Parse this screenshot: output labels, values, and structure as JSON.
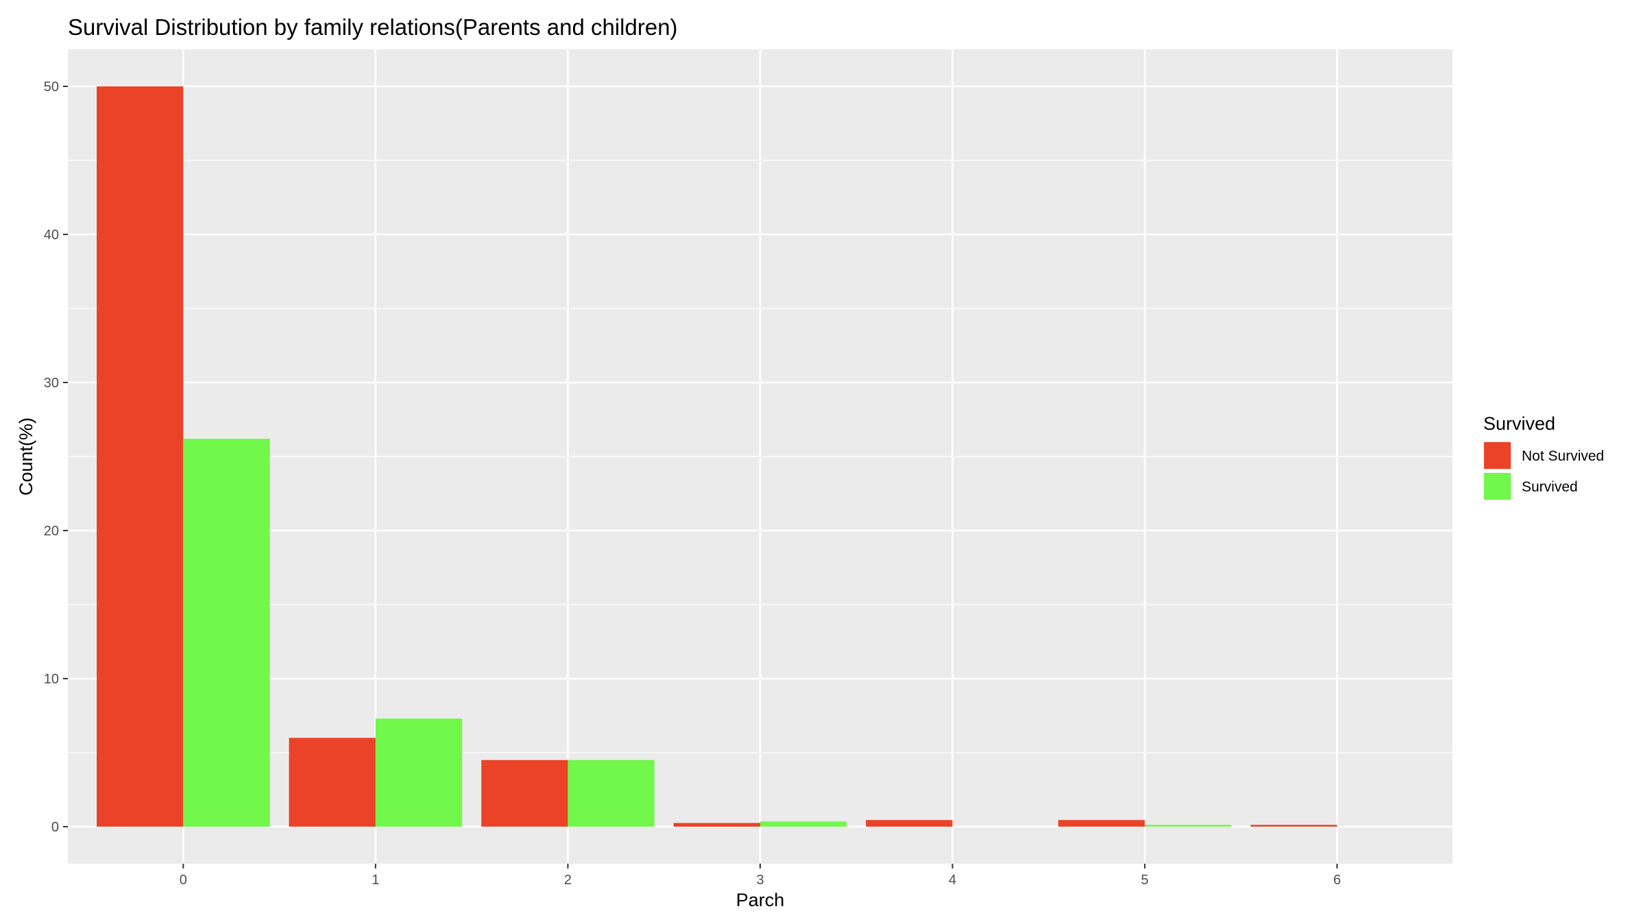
{
  "chart_data": {
    "type": "bar",
    "title": "Survival Distribution by family relations(Parents and children)",
    "xlabel": "Parch",
    "ylabel": "Count(%)",
    "categories": [
      "0",
      "1",
      "2",
      "3",
      "4",
      "5",
      "6"
    ],
    "series": [
      {
        "name": "Not Survived",
        "color": "#EB4328",
        "values": [
          50.0,
          6.0,
          4.5,
          0.25,
          0.45,
          0.45,
          0.12
        ]
      },
      {
        "name": "Survived",
        "color": "#72F74B",
        "values": [
          26.2,
          7.3,
          4.5,
          0.35,
          0,
          0.12,
          0
        ]
      }
    ],
    "yticks": [
      "0",
      "10",
      "20",
      "30",
      "40",
      "50"
    ],
    "ylim": [
      -2.5,
      52.5
    ],
    "legend": {
      "title": "Survived",
      "position": "right"
    },
    "grid": true,
    "panel_background": "#EBEBEB"
  }
}
